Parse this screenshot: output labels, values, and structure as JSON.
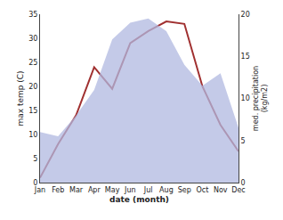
{
  "chart_data": {
    "type": "line",
    "categories": [
      "Jan",
      "Feb",
      "Mar",
      "Apr",
      "May",
      "Jun",
      "Jul",
      "Aug",
      "Sep",
      "Oct",
      "Nov",
      "Dec"
    ],
    "xlabel": "date (month)",
    "ylabel": "max temp (C)",
    "y2label": "med. precipitation\n(kg/m2)",
    "ylim": [
      0,
      35
    ],
    "yticks": [
      0,
      5,
      10,
      15,
      20,
      25,
      30,
      35
    ],
    "y2lim": [
      0,
      20
    ],
    "y2ticks": [
      0,
      5,
      10,
      15,
      20
    ],
    "grid": false,
    "series": [
      {
        "type": "area",
        "axis": "y2",
        "color": "#b0b8e0",
        "values": [
          6,
          5.5,
          8,
          11,
          17,
          19,
          19.5,
          18,
          14,
          11.5,
          13,
          6.5
        ]
      },
      {
        "type": "line",
        "color": "#a03030",
        "values": [
          1,
          8,
          14,
          24,
          19.5,
          29,
          31.5,
          33.5,
          33,
          20,
          12,
          6.5
        ]
      }
    ]
  }
}
